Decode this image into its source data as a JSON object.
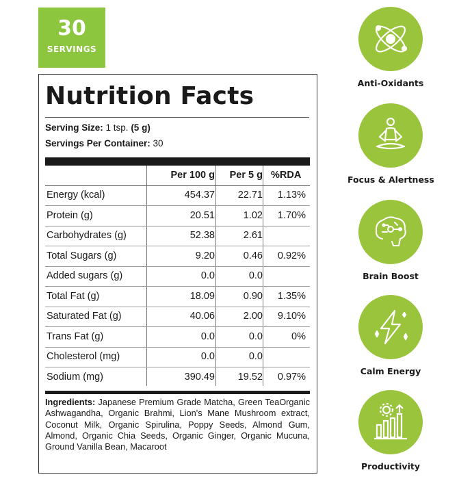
{
  "badge": {
    "number": "30",
    "label": "SERVINGS"
  },
  "panel": {
    "title": "Nutrition Facts",
    "serving_size_label": "Serving Size:",
    "serving_size_value": " 1 tsp. ",
    "serving_size_bold": "(5 g)",
    "servings_label": "Servings Per Container:",
    "servings_value": " 30"
  },
  "table": {
    "headers": [
      "",
      "Per 100 g",
      "Per 5 g",
      "%RDA"
    ],
    "rows": [
      [
        "Energy (kcal)",
        "454.37",
        "22.71",
        "1.13%"
      ],
      [
        "Protein (g)",
        "20.51",
        "1.02",
        "1.70%"
      ],
      [
        "Carbohydrates (g)",
        "52.38",
        "2.61",
        ""
      ],
      [
        "Total Sugars (g)",
        "9.20",
        "0.46",
        "0.92%"
      ],
      [
        "Added sugars (g)",
        "0.0",
        "0.0",
        ""
      ],
      [
        "Total Fat (g)",
        "18.09",
        "0.90",
        "1.35%"
      ],
      [
        "Saturated Fat (g)",
        "40.06",
        "2.00",
        "9.10%"
      ],
      [
        "Trans Fat (g)",
        "0.0",
        "0.0",
        "0%"
      ],
      [
        "Cholesterol (mg)",
        "0.0",
        "0.0",
        ""
      ],
      [
        "Sodium (mg)",
        "390.49",
        "19.52",
        "0.97%"
      ]
    ]
  },
  "ingredients": {
    "label": "Ingredients:",
    "text": " Japanese Premium Grade Matcha, Green TeaOrganic Ashwagandha, Organic Brahmi, Lion's Mane Mushroom extract, Coconut Milk, Organic Spirulina, Poppy Seeds, Almond Gum, Almond, Organic Chia Seeds, Organic Ginger, Organic Mucuna, Ground Vanilla Bean, Macaroot"
  },
  "benefits": [
    {
      "label": "Anti-Oxidants",
      "icon": "atom-icon"
    },
    {
      "label": "Focus & Alertness",
      "icon": "meditation-icon"
    },
    {
      "label": "Brain Boost",
      "icon": "brain-icon"
    },
    {
      "label": "Calm Energy",
      "icon": "lightning-icon"
    },
    {
      "label": "Productivity",
      "icon": "productivity-chart-icon"
    }
  ],
  "colors": {
    "accent": "#8cc63f",
    "icon_circle": "#9ac43c",
    "text": "#1a1a1a"
  }
}
